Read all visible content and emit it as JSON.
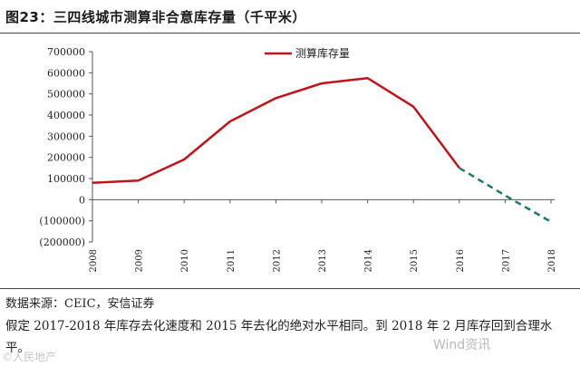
{
  "title": "图23：三四线城市测算非合意库存量（千平米）",
  "source": "数据来源：CEIC，安信证券",
  "note": "假定 2017-2018 年库存去化速度和 2015 年去化的绝对水平相同。到 2018 年 2 月库存回到合理水平。",
  "watermark_left": "©人民地产",
  "watermark_right": "Wind资讯",
  "colors": {
    "actual": "#c0141c",
    "forecast": "#1a7a6e"
  },
  "chart_data": {
    "type": "line",
    "title": "图23：三四线城市测算非合意库存量（千平米）",
    "xlabel": "",
    "ylabel": "",
    "ylim": [
      -200000,
      700000
    ],
    "yticks": [
      700000,
      600000,
      500000,
      400000,
      300000,
      200000,
      100000,
      0,
      -100000,
      -200000
    ],
    "ytick_labels": [
      "700000",
      "600000",
      "500000",
      "400000",
      "300000",
      "200000",
      "100000",
      "0",
      "(100000)",
      "(200000)"
    ],
    "categories": [
      "2008",
      "2009",
      "2010",
      "2011",
      "2012",
      "2013",
      "2014",
      "2015",
      "2016",
      "2017",
      "2018"
    ],
    "legend": {
      "position": "top-center"
    },
    "series": [
      {
        "name": "测算库存量",
        "style": "solid",
        "color": "#c0141c",
        "x": [
          "2008",
          "2009",
          "2010",
          "2011",
          "2012",
          "2013",
          "2014",
          "2015",
          "2016"
        ],
        "values": [
          80000,
          90000,
          190000,
          370000,
          480000,
          550000,
          575000,
          440000,
          150000
        ]
      },
      {
        "style": "dashed",
        "color": "#1a7a6e",
        "x": [
          "2016",
          "2017",
          "2018"
        ],
        "values": [
          150000,
          20000,
          -105000
        ]
      }
    ]
  }
}
